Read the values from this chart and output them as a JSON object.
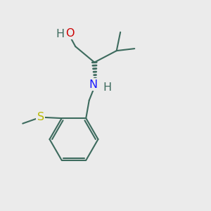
{
  "bg_color": "#ebebeb",
  "bond_color": "#3d6b5e",
  "bond_width": 1.5,
  "atom_colors": {
    "O": "#cc0000",
    "N": "#1a1aff",
    "S": "#b8b800",
    "H_teal": "#3d6b5e",
    "C": "#3d6b5e"
  },
  "font_size": 11.5
}
